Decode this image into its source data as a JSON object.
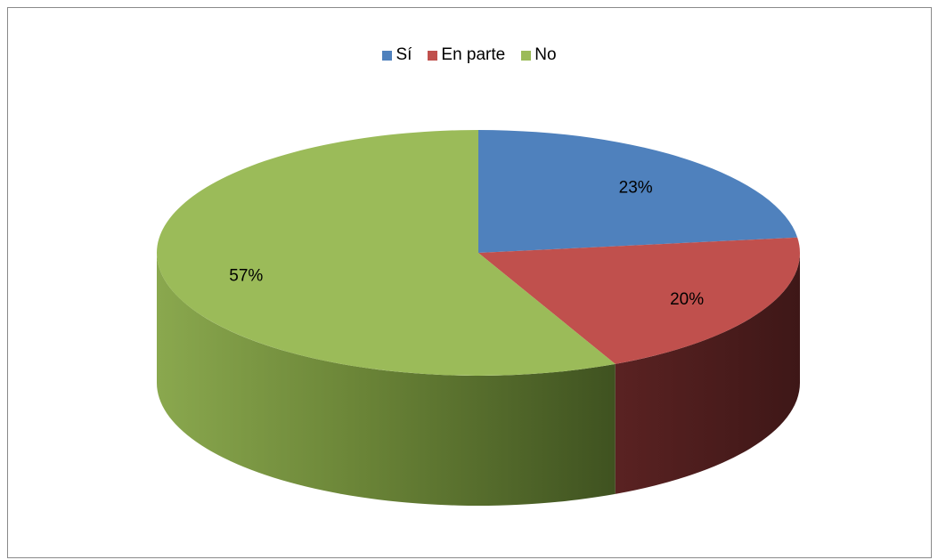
{
  "chart_data": {
    "type": "pie",
    "style": "3d",
    "categories": [
      "Sí",
      "En parte",
      "No"
    ],
    "values": [
      23,
      20,
      57
    ],
    "data_labels": [
      "23%",
      "20%",
      "57%"
    ],
    "colors": [
      "#4F81BD",
      "#C0504D",
      "#9BBB59"
    ],
    "legend_position": "top",
    "title": ""
  }
}
